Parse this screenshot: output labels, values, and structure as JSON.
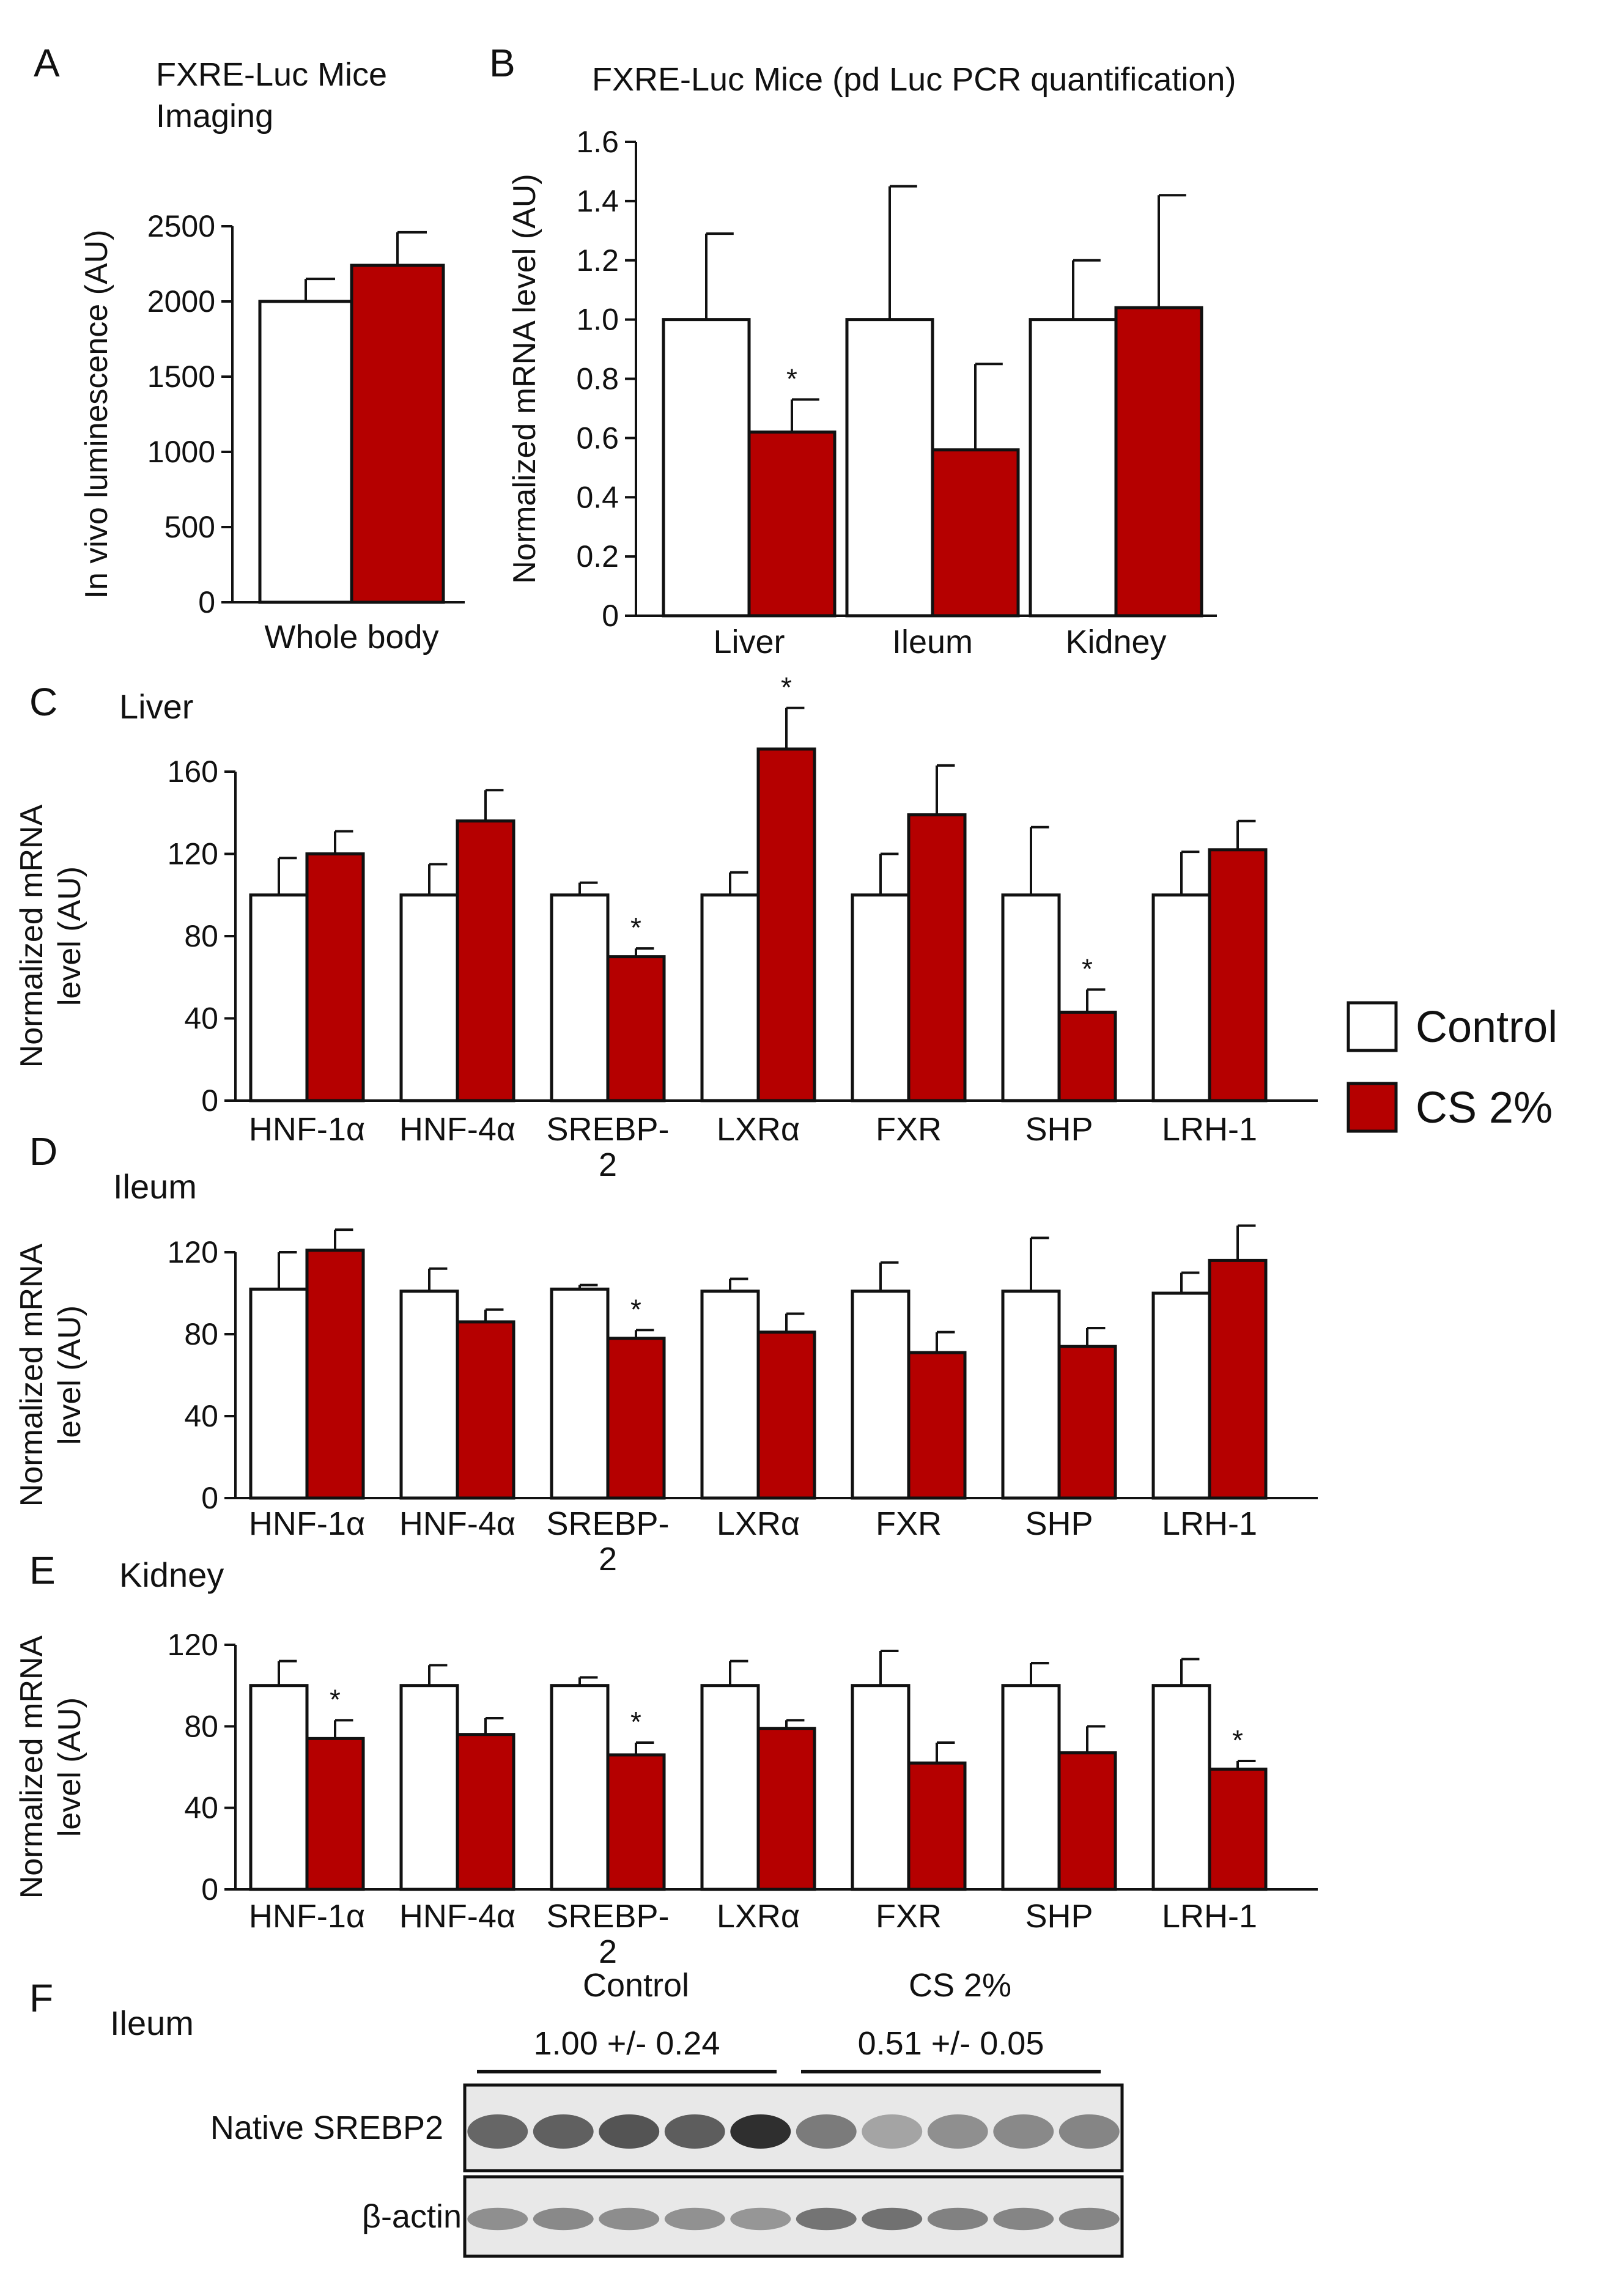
{
  "colors": {
    "control": "#ffffff",
    "treated": "#b50000",
    "axis": "#111111"
  },
  "legend": [
    {
      "label": "Control",
      "color": "#ffffff"
    },
    {
      "label": "CS 2%",
      "color": "#b50000"
    }
  ],
  "chart_data": [
    {
      "id": "A",
      "panel_letter": "A",
      "title": "FXRE-Luc Mice Imaging",
      "title_lines": [
        "FXRE-Luc Mice",
        "Imaging"
      ],
      "type": "bar",
      "ylabel": "In vivo luminescence (AU)",
      "ylabel_lines": [
        "In vivo luminescence (AU)"
      ],
      "ylim": [
        0,
        2500
      ],
      "yticks": [
        0,
        500,
        1000,
        1500,
        2000,
        2500
      ],
      "tick_labels": [
        "0",
        "500",
        "1000",
        "1500",
        "2000",
        "2500"
      ],
      "categories": [
        "Whole  body"
      ],
      "series": [
        {
          "name": "Control",
          "values": [
            2000
          ],
          "errors": [
            150
          ]
        },
        {
          "name": "CS 2%",
          "values": [
            2240
          ],
          "errors": [
            220
          ]
        }
      ],
      "significance": []
    },
    {
      "id": "B",
      "panel_letter": "B",
      "title": "FXRE-Luc Mice (pd Luc  PCR quantification)",
      "title_lines": [
        "FXRE-Luc Mice (pd Luc  PCR quantification)"
      ],
      "type": "bar",
      "ylabel": "Normalized mRNA level (AU)",
      "ylabel_lines": [
        "Normalized mRNA level (AU)"
      ],
      "ylim": [
        0,
        1.6
      ],
      "yticks": [
        0,
        0.2,
        0.4,
        0.6,
        0.8,
        1.0,
        1.2,
        1.4,
        1.6
      ],
      "tick_labels": [
        "0",
        "0.2",
        "0.4",
        "0.6",
        "0.8",
        "1.0",
        "1.2",
        "1.4",
        "1.6"
      ],
      "categories": [
        "Liver",
        "Ileum",
        "Kidney"
      ],
      "series": [
        {
          "name": "Control",
          "values": [
            1.0,
            1.0,
            1.0
          ],
          "errors": [
            0.29,
            0.45,
            0.2
          ]
        },
        {
          "name": "CS 2%",
          "values": [
            0.62,
            0.56,
            1.04
          ],
          "errors": [
            0.11,
            0.29,
            0.38
          ]
        }
      ],
      "significance": [
        {
          "category_index": 0,
          "series": "CS 2%",
          "mark": "*"
        }
      ]
    },
    {
      "id": "C",
      "panel_letter": "C",
      "title": "Liver",
      "title_lines": [
        "Liver"
      ],
      "type": "bar",
      "ylabel": "Normalized mRNA level (AU)",
      "ylabel_lines": [
        "Normalized mRNA",
        "level (AU)"
      ],
      "ylim": [
        0,
        160
      ],
      "yticks": [
        0,
        40,
        80,
        120,
        160
      ],
      "tick_labels": [
        "0",
        "40",
        "80",
        "120",
        "160"
      ],
      "categories": [
        "HNF-1α",
        "HNF-4α",
        "SREBP-2",
        "LXRα",
        "FXR",
        "SHP",
        "LRH-1"
      ],
      "category_lines": [
        [
          "HNF-1α"
        ],
        [
          "HNF-4α"
        ],
        [
          "SREBP-",
          "2"
        ],
        [
          "LXRα"
        ],
        [
          "FXR"
        ],
        [
          "SHP"
        ],
        [
          "LRH-1"
        ]
      ],
      "series": [
        {
          "name": "Control",
          "values": [
            100,
            100,
            100,
            100,
            100,
            100,
            100
          ],
          "errors": [
            18,
            15,
            6,
            11,
            20,
            33,
            21
          ]
        },
        {
          "name": "CS 2%",
          "values": [
            120,
            136,
            70,
            171,
            139,
            43,
            122
          ],
          "errors": [
            11,
            15,
            4,
            20,
            24,
            11,
            14
          ]
        }
      ],
      "significance": [
        {
          "category_index": 2,
          "series": "CS 2%",
          "mark": "*"
        },
        {
          "category_index": 3,
          "series": "CS 2%",
          "mark": "*"
        },
        {
          "category_index": 5,
          "series": "CS 2%",
          "mark": "*"
        }
      ]
    },
    {
      "id": "D",
      "panel_letter": "D",
      "title": "Ileum",
      "title_lines": [
        "Ileum"
      ],
      "type": "bar",
      "ylabel": "Normalized mRNA level (AU)",
      "ylabel_lines": [
        "Normalized mRNA",
        "level (AU)"
      ],
      "ylim": [
        0,
        120
      ],
      "yticks": [
        0,
        40,
        80,
        120
      ],
      "tick_labels": [
        "0",
        "40",
        "80",
        "120"
      ],
      "categories": [
        "HNF-1α",
        "HNF-4α",
        "SREBP-2",
        "LXRα",
        "FXR",
        "SHP",
        "LRH-1"
      ],
      "category_lines": [
        [
          "HNF-1α"
        ],
        [
          "HNF-4α"
        ],
        [
          "SREBP-",
          "2"
        ],
        [
          "LXRα"
        ],
        [
          "FXR"
        ],
        [
          "SHP"
        ],
        [
          "LRH-1"
        ]
      ],
      "series": [
        {
          "name": "Control",
          "values": [
            102,
            101,
            102,
            101,
            101,
            101,
            100
          ],
          "errors": [
            18,
            11,
            2,
            6,
            14,
            26,
            10
          ]
        },
        {
          "name": "CS 2%",
          "values": [
            121,
            86,
            78,
            81,
            71,
            74,
            116
          ],
          "errors": [
            10,
            6,
            4,
            9,
            10,
            9,
            17
          ]
        }
      ],
      "significance": [
        {
          "category_index": 2,
          "series": "CS 2%",
          "mark": "*"
        }
      ]
    },
    {
      "id": "E",
      "panel_letter": "E",
      "title": "Kidney",
      "title_lines": [
        "Kidney"
      ],
      "type": "bar",
      "ylabel": "Normalized mRNA level (AU)",
      "ylabel_lines": [
        "Normalized mRNA",
        "level (AU)"
      ],
      "ylim": [
        0,
        120
      ],
      "yticks": [
        0,
        40,
        80,
        120
      ],
      "tick_labels": [
        "0",
        "40",
        "80",
        "120"
      ],
      "categories": [
        "HNF-1α",
        "HNF-4α",
        "SREBP-2",
        "LXRα",
        "FXR",
        "SHP",
        "LRH-1"
      ],
      "category_lines": [
        [
          "HNF-1α"
        ],
        [
          "HNF-4α"
        ],
        [
          "SREBP-",
          "2"
        ],
        [
          "LXRα"
        ],
        [
          "FXR"
        ],
        [
          "SHP"
        ],
        [
          "LRH-1"
        ]
      ],
      "series": [
        {
          "name": "Control",
          "values": [
            100,
            100,
            100,
            100,
            100,
            100,
            100
          ],
          "errors": [
            12,
            10,
            4,
            12,
            17,
            11,
            13
          ]
        },
        {
          "name": "CS 2%",
          "values": [
            74,
            76,
            66,
            79,
            62,
            67,
            59
          ],
          "errors": [
            9,
            8,
            6,
            4,
            10,
            13,
            4
          ]
        }
      ],
      "significance": [
        {
          "category_index": 0,
          "series": "CS 2%",
          "mark": "*"
        },
        {
          "category_index": 2,
          "series": "CS 2%",
          "mark": "*"
        },
        {
          "category_index": 6,
          "series": "CS 2%",
          "mark": "*"
        }
      ]
    }
  ],
  "blot": {
    "panel_letter": "F",
    "title": "Ileum",
    "groups": [
      {
        "label": "Control",
        "quant": "1.00 +/- 0.24",
        "lanes": 5
      },
      {
        "label": "CS 2%",
        "quant": "0.51 +/- 0.05",
        "lanes": 5
      }
    ],
    "rows": [
      {
        "label": "Native SREBP2",
        "lane_intensity": [
          0.65,
          0.68,
          0.74,
          0.7,
          0.92,
          0.55,
          0.35,
          0.45,
          0.48,
          0.5
        ]
      },
      {
        "label": "β-actin",
        "lane_intensity": [
          0.45,
          0.48,
          0.46,
          0.44,
          0.42,
          0.58,
          0.6,
          0.52,
          0.5,
          0.5
        ]
      }
    ]
  }
}
